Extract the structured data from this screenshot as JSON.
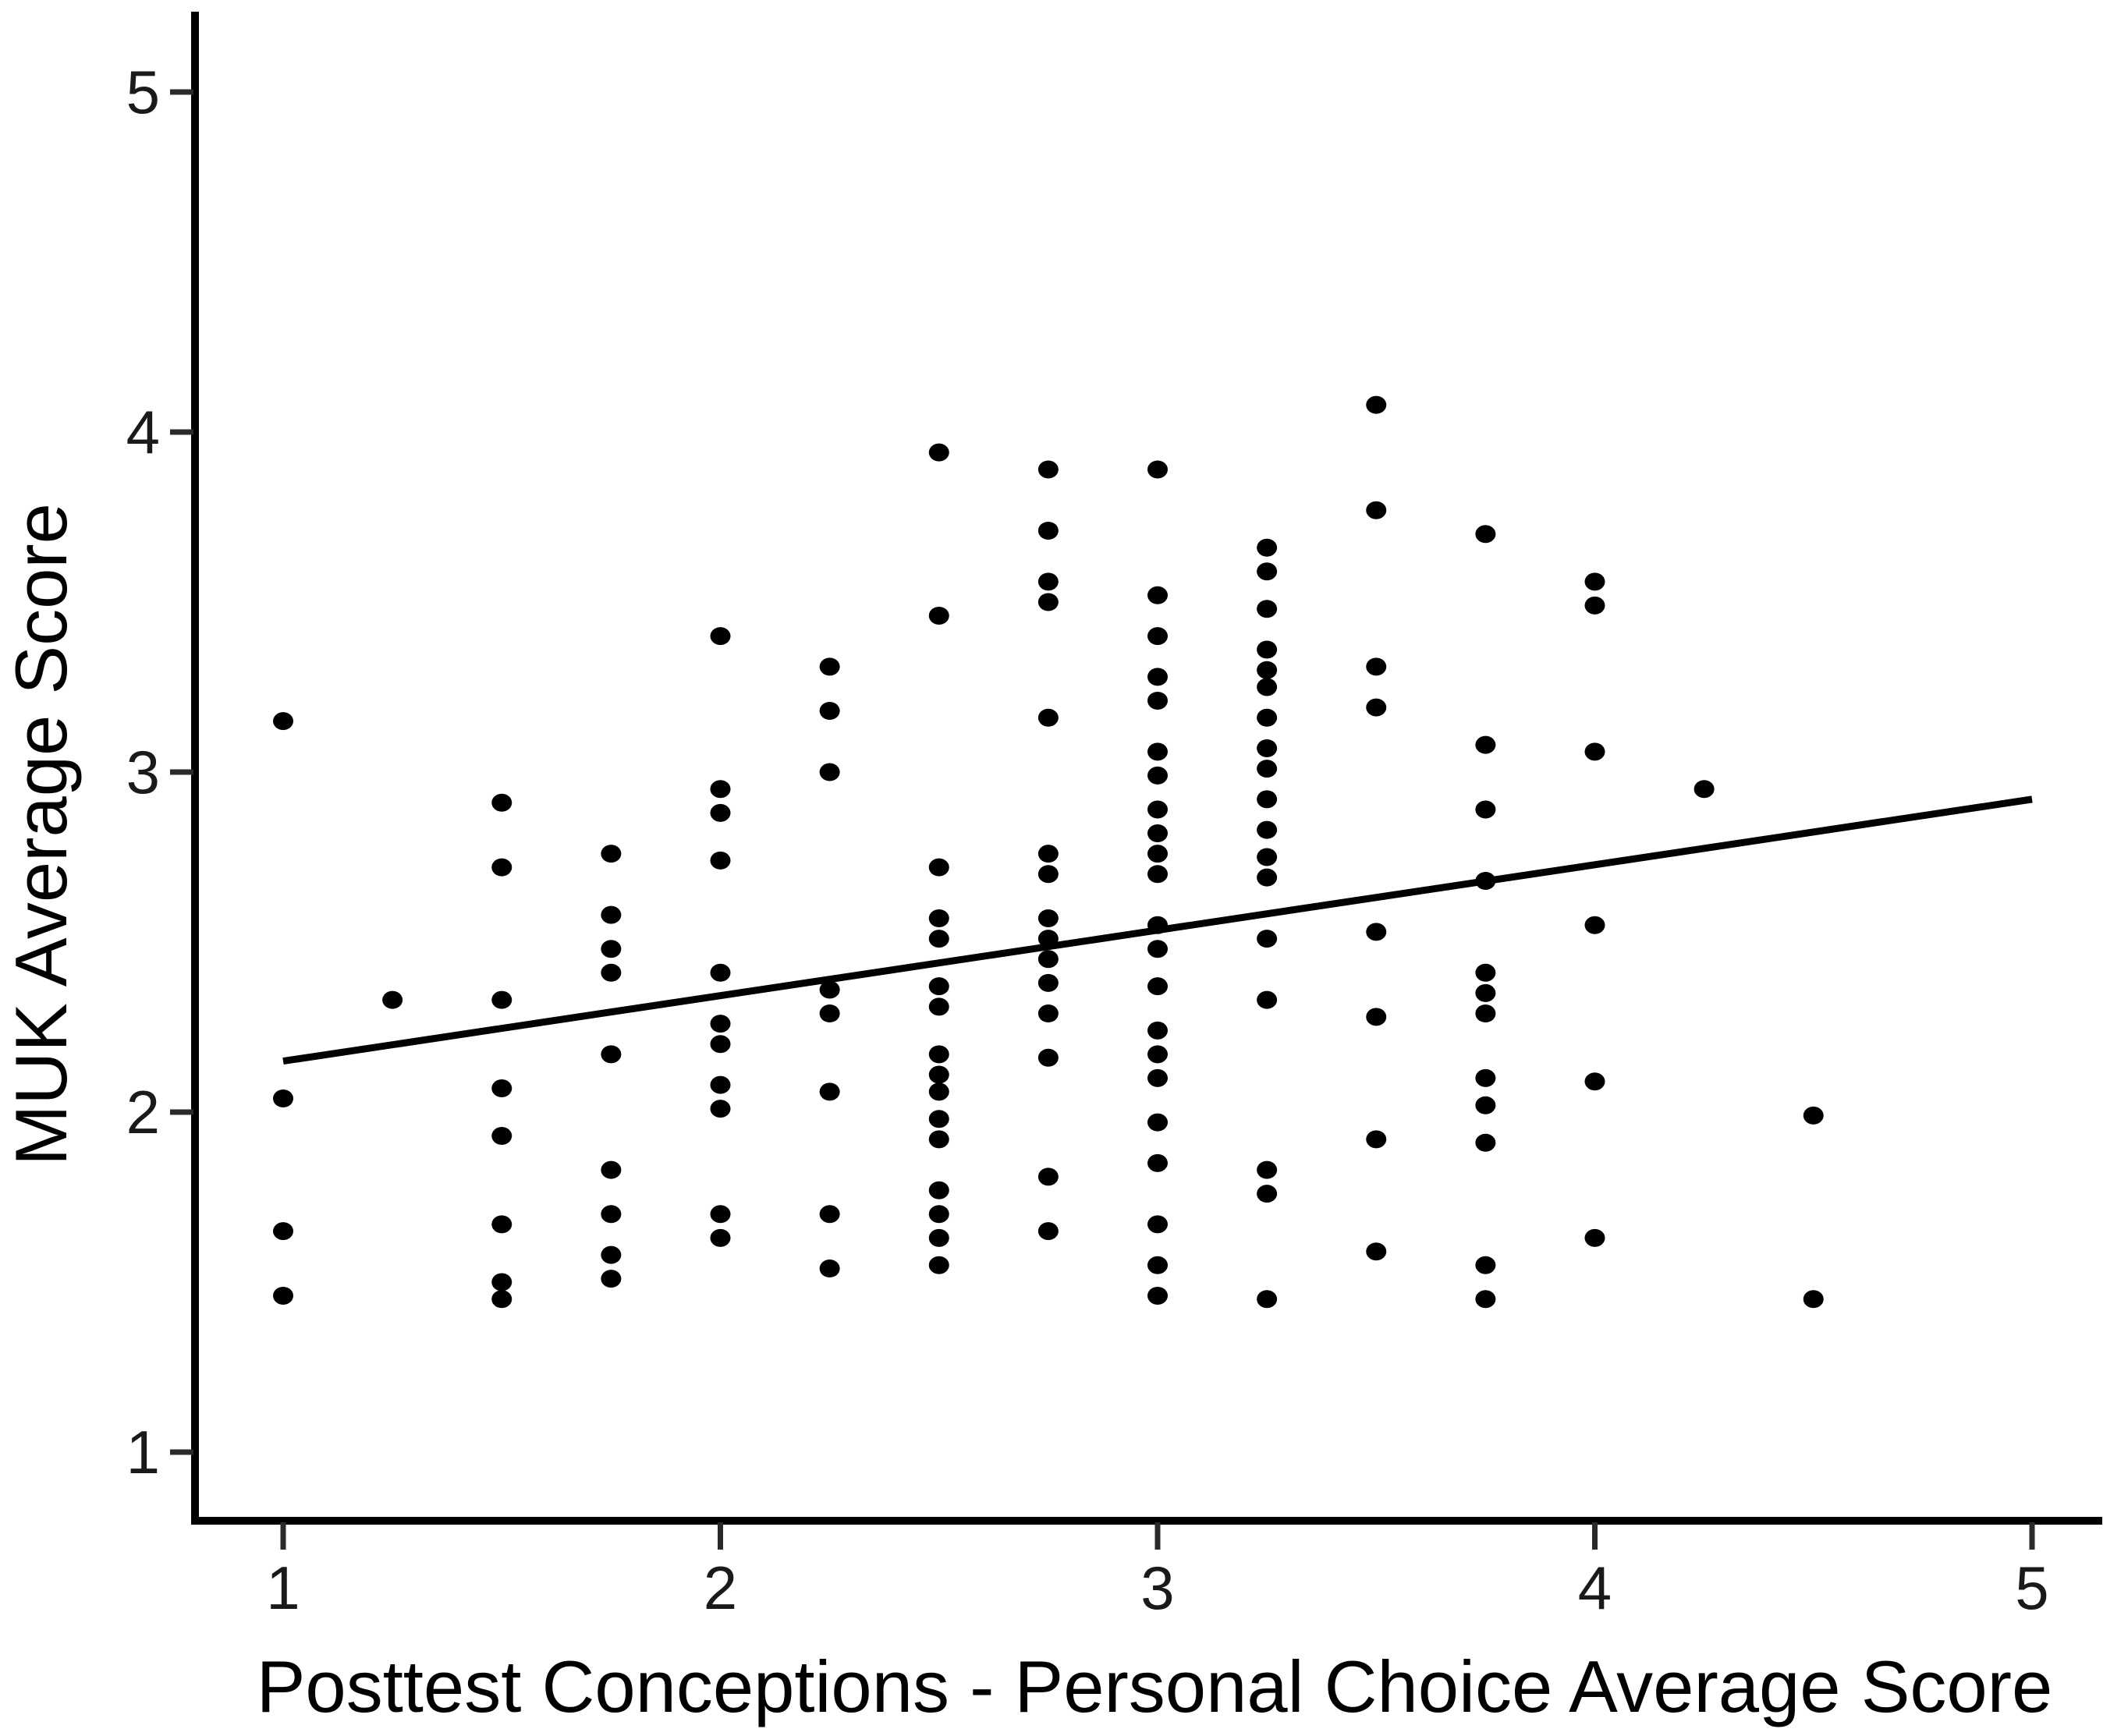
{
  "chart_data": {
    "type": "scatter",
    "title": "",
    "xlabel": "Posttest Conceptions - Personal Choice Average Score",
    "ylabel": "MUK Average Score",
    "xlim": [
      0.8,
      5.2
    ],
    "ylim": [
      0.8,
      5.25
    ],
    "x_ticks": [
      1,
      2,
      3,
      4,
      5
    ],
    "y_ticks": [
      1,
      2,
      3,
      4,
      5
    ],
    "grid": false,
    "legend": "none",
    "marker_color": "#000000",
    "trend_line": {
      "x1": 1.0,
      "y1": 2.15,
      "x2": 5.0,
      "y2": 2.92,
      "color": "#000000"
    },
    "points": [
      [
        1.0,
        3.15
      ],
      [
        1.0,
        2.04
      ],
      [
        1.0,
        1.65
      ],
      [
        1.0,
        1.46
      ],
      [
        1.25,
        2.33
      ],
      [
        1.5,
        2.91
      ],
      [
        1.5,
        2.72
      ],
      [
        1.5,
        2.33
      ],
      [
        1.5,
        2.07
      ],
      [
        1.5,
        1.93
      ],
      [
        1.5,
        1.67
      ],
      [
        1.5,
        1.5
      ],
      [
        1.5,
        1.45
      ],
      [
        1.75,
        2.76
      ],
      [
        1.75,
        2.58
      ],
      [
        1.75,
        2.48
      ],
      [
        1.75,
        2.41
      ],
      [
        1.75,
        2.17
      ],
      [
        1.75,
        1.83
      ],
      [
        1.75,
        1.7
      ],
      [
        1.75,
        1.58
      ],
      [
        1.75,
        1.51
      ],
      [
        2.0,
        3.4
      ],
      [
        2.0,
        2.95
      ],
      [
        2.0,
        2.88
      ],
      [
        2.0,
        2.74
      ],
      [
        2.0,
        2.41
      ],
      [
        2.0,
        2.26
      ],
      [
        2.0,
        2.2
      ],
      [
        2.0,
        2.08
      ],
      [
        2.0,
        2.01
      ],
      [
        2.0,
        1.7
      ],
      [
        2.0,
        1.63
      ],
      [
        2.25,
        3.31
      ],
      [
        2.25,
        3.18
      ],
      [
        2.25,
        3.0
      ],
      [
        2.25,
        2.36
      ],
      [
        2.25,
        2.29
      ],
      [
        2.25,
        2.06
      ],
      [
        2.25,
        1.7
      ],
      [
        2.25,
        1.54
      ],
      [
        2.5,
        3.94
      ],
      [
        2.5,
        3.46
      ],
      [
        2.5,
        2.72
      ],
      [
        2.5,
        2.57
      ],
      [
        2.5,
        2.51
      ],
      [
        2.5,
        2.37
      ],
      [
        2.5,
        2.31
      ],
      [
        2.5,
        2.17
      ],
      [
        2.5,
        2.11
      ],
      [
        2.5,
        2.06
      ],
      [
        2.5,
        1.98
      ],
      [
        2.5,
        1.92
      ],
      [
        2.5,
        1.77
      ],
      [
        2.5,
        1.7
      ],
      [
        2.5,
        1.63
      ],
      [
        2.5,
        1.55
      ],
      [
        2.75,
        3.89
      ],
      [
        2.75,
        3.71
      ],
      [
        2.75,
        3.56
      ],
      [
        2.75,
        3.5
      ],
      [
        2.75,
        3.16
      ],
      [
        2.75,
        2.76
      ],
      [
        2.75,
        2.7
      ],
      [
        2.75,
        2.57
      ],
      [
        2.75,
        2.51
      ],
      [
        2.75,
        2.45
      ],
      [
        2.75,
        2.38
      ],
      [
        2.75,
        2.29
      ],
      [
        2.75,
        2.16
      ],
      [
        2.75,
        1.81
      ],
      [
        2.75,
        1.65
      ],
      [
        3.0,
        3.89
      ],
      [
        3.0,
        3.52
      ],
      [
        3.0,
        3.4
      ],
      [
        3.0,
        3.28
      ],
      [
        3.0,
        3.21
      ],
      [
        3.0,
        3.06
      ],
      [
        3.0,
        2.99
      ],
      [
        3.0,
        2.89
      ],
      [
        3.0,
        2.82
      ],
      [
        3.0,
        2.76
      ],
      [
        3.0,
        2.7
      ],
      [
        3.0,
        2.55
      ],
      [
        3.0,
        2.48
      ],
      [
        3.0,
        2.37
      ],
      [
        3.0,
        2.24
      ],
      [
        3.0,
        2.17
      ],
      [
        3.0,
        2.1
      ],
      [
        3.0,
        1.97
      ],
      [
        3.0,
        1.85
      ],
      [
        3.0,
        1.67
      ],
      [
        3.0,
        1.55
      ],
      [
        3.0,
        1.46
      ],
      [
        3.25,
        3.66
      ],
      [
        3.25,
        3.59
      ],
      [
        3.25,
        3.48
      ],
      [
        3.25,
        3.36
      ],
      [
        3.25,
        3.3
      ],
      [
        3.25,
        3.25
      ],
      [
        3.25,
        3.16
      ],
      [
        3.25,
        3.07
      ],
      [
        3.25,
        3.01
      ],
      [
        3.25,
        2.92
      ],
      [
        3.25,
        2.83
      ],
      [
        3.25,
        2.75
      ],
      [
        3.25,
        2.69
      ],
      [
        3.25,
        2.51
      ],
      [
        3.25,
        2.33
      ],
      [
        3.25,
        1.83
      ],
      [
        3.25,
        1.76
      ],
      [
        3.25,
        1.45
      ],
      [
        3.5,
        4.08
      ],
      [
        3.5,
        3.77
      ],
      [
        3.5,
        3.31
      ],
      [
        3.5,
        3.19
      ],
      [
        3.5,
        2.53
      ],
      [
        3.5,
        2.28
      ],
      [
        3.5,
        1.92
      ],
      [
        3.5,
        1.59
      ],
      [
        3.75,
        3.7
      ],
      [
        3.75,
        3.08
      ],
      [
        3.75,
        2.89
      ],
      [
        3.75,
        2.68
      ],
      [
        3.75,
        2.41
      ],
      [
        3.75,
        2.35
      ],
      [
        3.75,
        2.29
      ],
      [
        3.75,
        2.1
      ],
      [
        3.75,
        2.02
      ],
      [
        3.75,
        1.91
      ],
      [
        3.75,
        1.55
      ],
      [
        3.75,
        1.45
      ],
      [
        4.0,
        3.56
      ],
      [
        4.0,
        3.49
      ],
      [
        4.0,
        3.06
      ],
      [
        4.0,
        2.55
      ],
      [
        4.0,
        2.09
      ],
      [
        4.0,
        1.63
      ],
      [
        4.25,
        2.95
      ],
      [
        4.5,
        1.99
      ],
      [
        4.5,
        1.45
      ]
    ]
  },
  "colors": {
    "background": "#ffffff",
    "axis": "#000000",
    "tick": "#2a2a2a",
    "label": "#1a1a1a"
  }
}
